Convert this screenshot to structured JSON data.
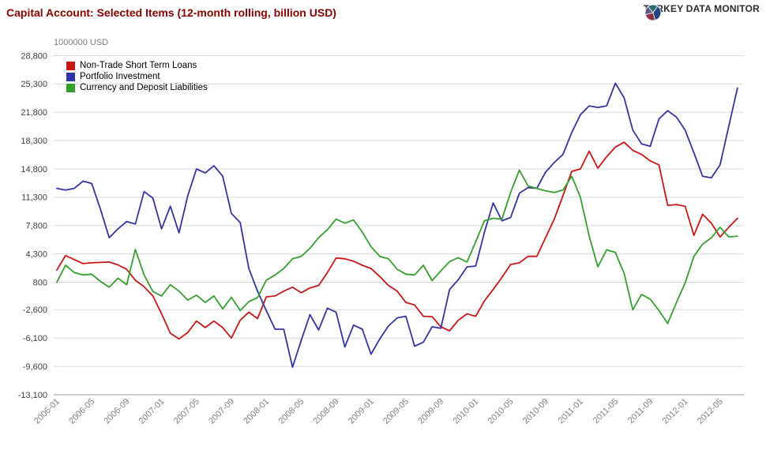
{
  "header": {
    "title": "Capital Account: Selected Items (12-month rolling, billion USD)",
    "brand": {
      "name": "TURKEY DATA MONITOR",
      "pie_slices": [
        {
          "color": "#27447c",
          "start": -55,
          "end": 75
        },
        {
          "color": "#8a3244",
          "start": 75,
          "end": 165
        },
        {
          "color": "#5e5a86",
          "start": 165,
          "end": 230
        },
        {
          "color": "#2f6e78",
          "start": 230,
          "end": 305
        }
      ]
    }
  },
  "chart_data": {
    "type": "line",
    "title": "Capital Account: Selected Items (12-month rolling, billion USD)",
    "unit_label": "1000000 USD",
    "grid": true,
    "legend_position": "top-left",
    "ylim": [
      -13100,
      28800
    ],
    "y_ticks": [
      28800,
      25300,
      21800,
      18300,
      14800,
      11300,
      7800,
      4300,
      800,
      -2600,
      -6100,
      -9600,
      -13100
    ],
    "y_tick_labels": [
      "28,800",
      "25,300",
      "21,800",
      "18,300",
      "14,800",
      "11,300",
      "7,800",
      "4,300",
      "800",
      "-2,600",
      "-6,100",
      "-9,600",
      "-13,100"
    ],
    "x_tick_labels": [
      "2006-01",
      "2006-05",
      "2006-09",
      "2007-01",
      "2007-05",
      "2007-09",
      "2008-01",
      "2008-05",
      "2008-09",
      "2009-01",
      "2009-05",
      "2009-09",
      "2010-01",
      "2010-05",
      "2010-09",
      "2011-01",
      "2011-05",
      "2011-09",
      "2012-01",
      "2012-05"
    ],
    "x": [
      "2006-01",
      "2006-02",
      "2006-03",
      "2006-04",
      "2006-05",
      "2006-06",
      "2006-07",
      "2006-08",
      "2006-09",
      "2006-10",
      "2006-11",
      "2006-12",
      "2007-01",
      "2007-02",
      "2007-03",
      "2007-04",
      "2007-05",
      "2007-06",
      "2007-07",
      "2007-08",
      "2007-09",
      "2007-10",
      "2007-11",
      "2007-12",
      "2008-01",
      "2008-02",
      "2008-03",
      "2008-04",
      "2008-05",
      "2008-06",
      "2008-07",
      "2008-08",
      "2008-09",
      "2008-10",
      "2008-11",
      "2008-12",
      "2009-01",
      "2009-02",
      "2009-03",
      "2009-04",
      "2009-05",
      "2009-06",
      "2009-07",
      "2009-08",
      "2009-09",
      "2009-10",
      "2009-11",
      "2009-12",
      "2010-01",
      "2010-02",
      "2010-03",
      "2010-04",
      "2010-05",
      "2010-06",
      "2010-07",
      "2010-08",
      "2010-09",
      "2010-10",
      "2010-11",
      "2010-12",
      "2011-01",
      "2011-02",
      "2011-03",
      "2011-04",
      "2011-05",
      "2011-06",
      "2011-07",
      "2011-08",
      "2011-09",
      "2011-10",
      "2011-11",
      "2011-12",
      "2012-01",
      "2012-02",
      "2012-03",
      "2012-04",
      "2012-05",
      "2012-06",
      "2012-07"
    ],
    "series": [
      {
        "name": "Non-Trade Short Term Loans",
        "color": "#cc1515",
        "values": [
          2300,
          4100,
          3600,
          3100,
          3200,
          3250,
          3300,
          2950,
          2400,
          1050,
          250,
          -900,
          -3100,
          -5500,
          -6200,
          -5400,
          -4000,
          -4800,
          -4000,
          -4800,
          -6100,
          -3900,
          -2900,
          -3700,
          -1000,
          -900,
          -300,
          200,
          -500,
          100,
          400,
          2000,
          3800,
          3700,
          3400,
          2900,
          2500,
          1500,
          400,
          -300,
          -1700,
          -2000,
          -3400,
          -3450,
          -4700,
          -5200,
          -3900,
          -3100,
          -3400,
          -1500,
          -100,
          1400,
          3000,
          3200,
          4000,
          4000,
          6300,
          8600,
          11500,
          14500,
          14800,
          17000,
          14900,
          16300,
          17500,
          18100,
          17100,
          16600,
          15800,
          15300,
          10300,
          10400,
          10200,
          6600,
          9200,
          8100,
          6400,
          7600,
          8700
        ]
      },
      {
        "name": "Portfolio Investment",
        "color": "#3333a8",
        "values": [
          12400,
          12200,
          12400,
          13300,
          13000,
          9800,
          6300,
          7400,
          8300,
          8000,
          12000,
          11200,
          7400,
          10200,
          6900,
          11500,
          14800,
          14300,
          15200,
          13900,
          9300,
          8200,
          2500,
          -300,
          -2700,
          -5000,
          -5000,
          -9700,
          -6400,
          -3200,
          -5100,
          -2400,
          -2900,
          -7200,
          -4500,
          -5000,
          -8100,
          -6200,
          -4600,
          -3600,
          -3400,
          -7100,
          -6600,
          -4700,
          -4900,
          -100,
          1100,
          2700,
          2800,
          7000,
          10600,
          8400,
          8800,
          11800,
          12500,
          12400,
          14400,
          15600,
          16600,
          19300,
          21500,
          22600,
          22400,
          22600,
          25400,
          23600,
          19600,
          17900,
          17600,
          21000,
          22000,
          21200,
          19600,
          16800,
          13900,
          13700,
          15300,
          20100,
          24800
        ]
      },
      {
        "name": "Currency and Deposit Liabilities",
        "color": "#33a02c",
        "values": [
          800,
          2900,
          2000,
          1700,
          1800,
          900,
          200,
          1300,
          500,
          4850,
          1700,
          -350,
          -900,
          500,
          -300,
          -1400,
          -800,
          -1700,
          -900,
          -2500,
          -1050,
          -2700,
          -1600,
          -1100,
          1050,
          1700,
          2500,
          3700,
          4000,
          5000,
          6300,
          7300,
          8600,
          8100,
          8500,
          7000,
          5200,
          4000,
          3700,
          2400,
          1800,
          1700,
          2900,
          1000,
          2200,
          3350,
          3840,
          3300,
          5800,
          8400,
          8700,
          8600,
          11900,
          14650,
          12700,
          12400,
          12100,
          11900,
          12200,
          13900,
          11300,
          6500,
          2700,
          4800,
          4500,
          1900,
          -2600,
          -700,
          -1300,
          -2700,
          -4300,
          -1700,
          700,
          4000,
          5500,
          6300,
          7600,
          6400,
          6500
        ]
      }
    ],
    "style": {
      "gridline_color": "#d9d9d9",
      "bottom_axis_color": "#9a9a9a",
      "y_label_color": "#404040",
      "x_label_color": "#808080",
      "line_width": 1.8
    }
  }
}
